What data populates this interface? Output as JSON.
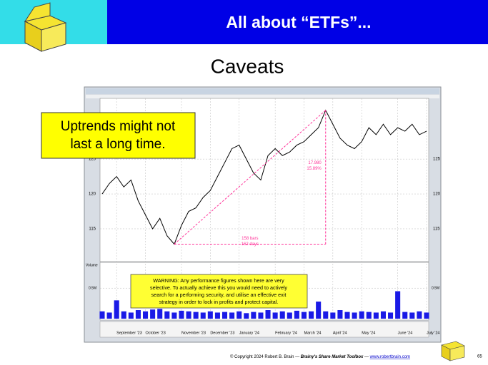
{
  "header": {
    "title": "All about “ETFs”..."
  },
  "slide": {
    "subtitle": "Caveats"
  },
  "callout": {
    "lines": [
      "Uptrends might not",
      "last a long time."
    ]
  },
  "warning": {
    "lines": [
      "WARNING: Any performance figures shown here are very",
      "selective. To actually achieve this you would need to actively",
      "search for a performing security, and utilise an effective exit",
      "strategy in order to lock in profits and protect capital."
    ]
  },
  "footer": {
    "copyright": "© Copyright 2024 Robert B. Brain —",
    "brand": "Brainy's Share Market Toolbox",
    "dash": "—",
    "url": "www.robertbrain.com",
    "page": "65"
  },
  "chart_data": [
    {
      "type": "line",
      "categories": [
        null,
        null,
        "September '23",
        null,
        null,
        null,
        "October '23",
        null,
        null,
        null,
        null,
        "November '23",
        null,
        null,
        null,
        "December '23",
        null,
        null,
        null,
        "January '24",
        null,
        null,
        null,
        null,
        "February '24",
        null,
        null,
        null,
        "March '24",
        null,
        null,
        null,
        "April '24",
        null,
        null,
        null,
        "May '24",
        null,
        null,
        null,
        null,
        "June '24",
        null,
        null,
        null,
        "July '24"
      ],
      "series": [
        {
          "name": null,
          "color": "#000000",
          "values": [
            120.0,
            121.5,
            122.5,
            121.0,
            122.0,
            119.0,
            117.0,
            115.0,
            116.5,
            114.0,
            112.8,
            115.5,
            117.5,
            118.0,
            119.5,
            120.5,
            122.5,
            124.5,
            126.5,
            127.0,
            125.0,
            123.0,
            122.0,
            125.5,
            126.5,
            125.5,
            126.0,
            127.0,
            127.5,
            128.5,
            129.5,
            132.0,
            130.0,
            128.0,
            127.0,
            126.5,
            127.5,
            129.5,
            128.5,
            130.0,
            128.5,
            129.5,
            129.0,
            130.0,
            128.5,
            129.0
          ]
        }
      ],
      "ylim": [
        110.5,
        133.5
      ],
      "yticks": [
        115,
        120,
        125
      ],
      "grid": true,
      "annotations": [
        {
          "lines": [
            "17.980",
            "15.89%"
          ]
        },
        {
          "lines": [
            "158 bars",
            "162 days"
          ]
        }
      ]
    },
    {
      "type": "bar",
      "title": "Volume",
      "color": "#1a1ae6",
      "values": [
        0.12,
        0.1,
        0.3,
        0.12,
        0.1,
        0.14,
        0.12,
        0.15,
        0.16,
        0.12,
        0.1,
        0.13,
        0.12,
        0.11,
        0.1,
        0.12,
        0.1,
        0.11,
        0.1,
        0.12,
        0.09,
        0.11,
        0.1,
        0.14,
        0.1,
        0.12,
        0.1,
        0.13,
        0.11,
        0.12,
        0.28,
        0.12,
        0.1,
        0.14,
        0.11,
        0.1,
        0.12,
        0.11,
        0.1,
        0.12,
        0.1,
        0.45,
        0.11,
        0.1,
        0.12,
        0.1
      ],
      "ylim": [
        0,
        0.9
      ],
      "yticks": [
        {
          "value": 0.5,
          "label": "0.5M"
        }
      ]
    }
  ]
}
